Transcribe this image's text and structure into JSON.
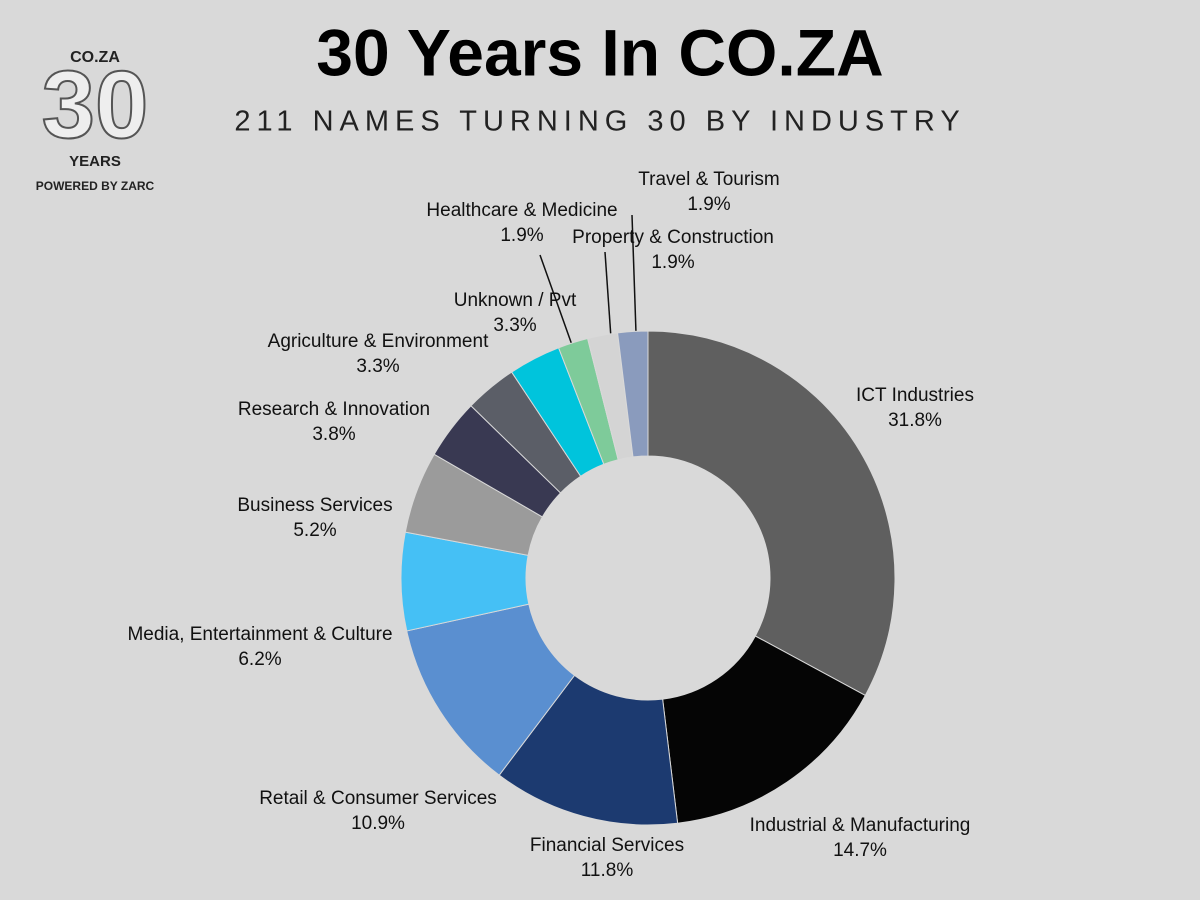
{
  "logo": {
    "top": "CO.ZA",
    "number": "30",
    "bottom": "YEARS",
    "powered": "POWERED BY ZARC"
  },
  "chart_data": {
    "type": "donut",
    "title": "30 Years In CO.ZA",
    "subtitle": "211 NAMES TURNING 30 BY INDUSTRY",
    "categories": [
      "ICT Industries",
      "Industrial & Manufacturing",
      "Financial Services",
      "Retail & Consumer Services",
      "Media, Entertainment & Culture",
      "Business Services",
      "Research & Innovation",
      "Agriculture & Environment",
      "Unknown / Pvt",
      "Healthcare & Medicine",
      "Property & Construction",
      "Travel & Tourism"
    ],
    "values": [
      31.8,
      14.7,
      11.8,
      10.9,
      6.2,
      5.2,
      3.8,
      3.3,
      3.3,
      1.9,
      1.9,
      1.9
    ],
    "value_labels": [
      "31.8%",
      "14.7%",
      "11.8%",
      "10.9%",
      "6.2%",
      "5.2%",
      "3.8%",
      "3.3%",
      "3.3%",
      "1.9%",
      "1.9%",
      "1.9%"
    ],
    "colors": [
      "#5f5f5f",
      "#050505",
      "#1c3a70",
      "#5a8fd0",
      "#45c0f5",
      "#9b9b9b",
      "#393952",
      "#5b5e67",
      "#00c4dc",
      "#7ecb9a",
      "#d4d4d4",
      "#8a9bbd"
    ]
  }
}
